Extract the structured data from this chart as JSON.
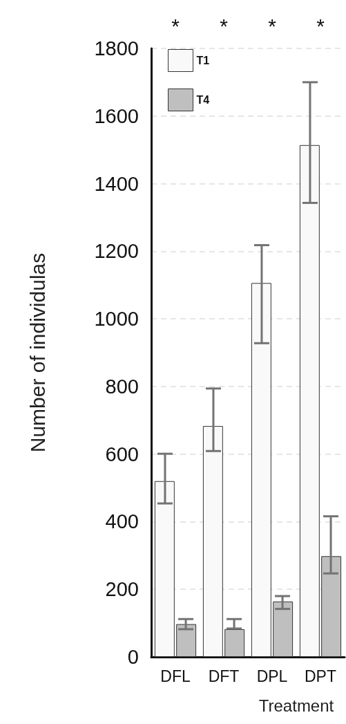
{
  "chart_data": {
    "type": "bar",
    "xlabel": "Treatment",
    "ylabel": "Number of individulas",
    "categories": [
      "DFL",
      "DFT",
      "DPL",
      "DPT"
    ],
    "series": [
      {
        "name": "T1",
        "color": "#f9f9f9",
        "values": [
          520,
          683,
          1106,
          1514
        ],
        "errors": [
          [
            454,
            601
          ],
          [
            609,
            794
          ],
          [
            928,
            1218
          ],
          [
            1343,
            1700
          ]
        ]
      },
      {
        "name": "T4",
        "color": "#bfbfbf",
        "values": [
          97,
          82,
          164,
          298
        ],
        "errors": [
          [
            82,
            112
          ],
          [
            84,
            112
          ],
          [
            142,
            180
          ],
          [
            247,
            416
          ]
        ]
      }
    ],
    "ylim": [
      0,
      1800
    ],
    "yticks": [
      0,
      200,
      400,
      600,
      800,
      1000,
      1200,
      1400,
      1600,
      1800
    ],
    "grid": "y",
    "legend": "top left",
    "annotations": [
      "*",
      "*",
      "*",
      "*"
    ]
  }
}
